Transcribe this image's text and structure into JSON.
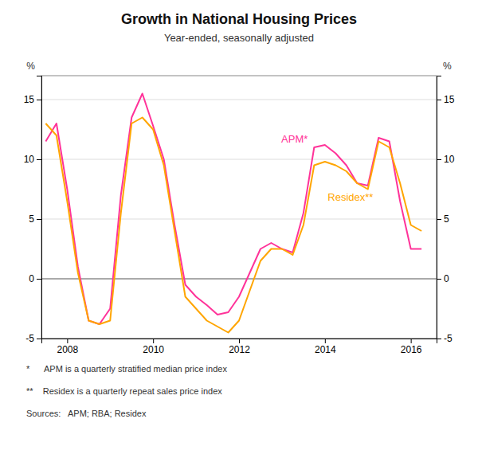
{
  "chart_data": {
    "type": "line",
    "title": "Growth in National Housing Prices",
    "subtitle": "Year-ended, seasonally adjusted",
    "y_label": "%",
    "y2_label": "%",
    "annotations": [
      "*      APM is a quarterly stratified median price index",
      "**    Residex is a quarterly repeat sales price index",
      "Sources:   APM; RBA; Residex"
    ],
    "x": [
      2007.5,
      2007.75,
      2008.0,
      2008.25,
      2008.5,
      2008.75,
      2009.0,
      2009.25,
      2009.5,
      2009.75,
      2010.0,
      2010.25,
      2010.5,
      2010.75,
      2011.0,
      2011.25,
      2011.5,
      2011.75,
      2012.0,
      2012.25,
      2012.5,
      2012.75,
      2013.0,
      2013.25,
      2013.5,
      2013.75,
      2014.0,
      2014.25,
      2014.5,
      2014.75,
      2015.0,
      2015.25,
      2015.5,
      2015.75,
      2016.0,
      2016.25
    ],
    "series": [
      {
        "name": "APM*",
        "color": "#FF3399",
        "values": [
          11.5,
          13.0,
          7.5,
          1.0,
          -3.5,
          -3.8,
          -2.5,
          7.0,
          13.5,
          15.5,
          12.8,
          10.0,
          4.5,
          -0.5,
          -1.5,
          -2.2,
          -3.0,
          -2.8,
          -1.5,
          0.5,
          2.5,
          3.0,
          2.5,
          2.2,
          5.5,
          11.0,
          11.2,
          10.5,
          9.5,
          8.0,
          7.8,
          11.8,
          11.5,
          6.5,
          2.5,
          2.5
        ]
      },
      {
        "name": "Residex**",
        "color": "#FFA500",
        "values": [
          13.0,
          12.0,
          6.5,
          0.5,
          -3.5,
          -3.8,
          -3.5,
          5.5,
          13.0,
          13.5,
          12.5,
          9.5,
          4.0,
          -1.5,
          -2.5,
          -3.5,
          -4.0,
          -4.5,
          -3.5,
          -1.0,
          1.5,
          2.5,
          2.5,
          2.0,
          4.5,
          9.5,
          9.8,
          9.5,
          9.0,
          8.0,
          7.5,
          11.5,
          11.0,
          8.0,
          4.5,
          4.0
        ]
      }
    ],
    "xlim": [
      2007.4,
      2016.6
    ],
    "xticks": [
      2008,
      2010,
      2012,
      2014,
      2016
    ],
    "ylim": [
      -5,
      17
    ],
    "yticks": [
      -5,
      0,
      5,
      10,
      15
    ],
    "y2lim": [
      -5,
      17
    ],
    "y2ticks": [
      -5,
      0,
      5,
      10,
      15
    ],
    "grid": true
  }
}
